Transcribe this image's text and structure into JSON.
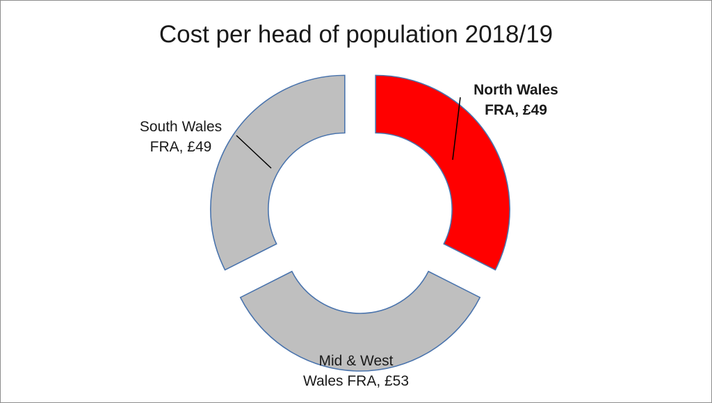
{
  "chart_data": {
    "type": "pie",
    "title": "Cost per head of population 2018/19",
    "hole": true,
    "slices": [
      {
        "label_line1": "North Wales",
        "label_line2": "FRA, £49",
        "value": 49,
        "color": "#ff0000",
        "highlighted": true
      },
      {
        "label_line1": "Mid & West",
        "label_line2": "Wales FRA, £53",
        "value": 53,
        "color": "#bfbfbf",
        "highlighted": false
      },
      {
        "label_line1": "South Wales",
        "label_line2": "FRA, £49",
        "value": 49,
        "color": "#bfbfbf",
        "highlighted": false
      }
    ],
    "slice_border_color": "#4a74ad"
  }
}
